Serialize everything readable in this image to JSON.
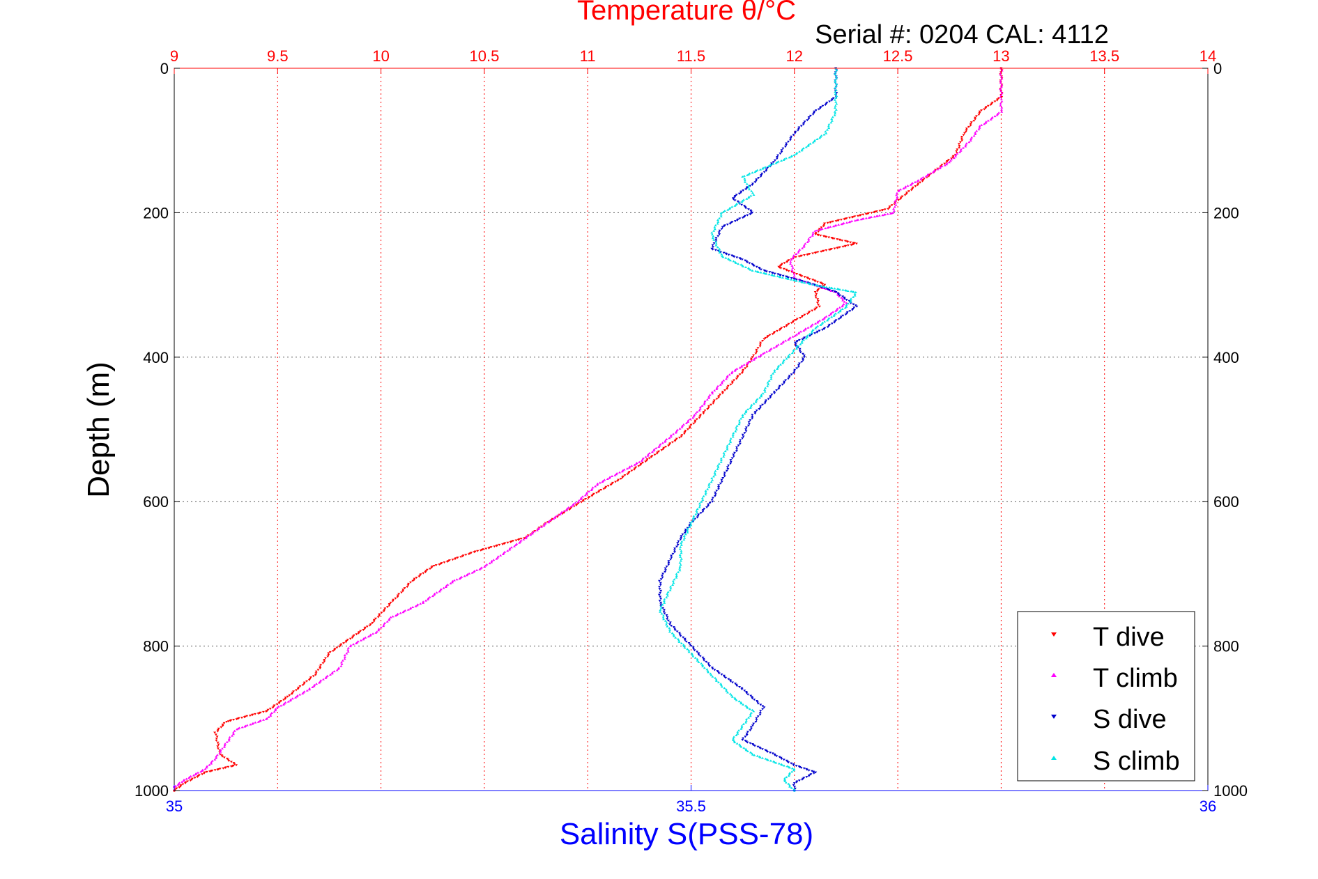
{
  "chart_data": {
    "type": "scatter",
    "title": "Temperature θ/°C",
    "subtitle": "Serial #: 0204  CAL: 4112",
    "xlabel_bottom": "Salinity S(PSS-78)",
    "ylabel": "Depth (m)",
    "x_top_axis": {
      "label": "Temperature θ/°C",
      "range": [
        9,
        14
      ],
      "ticks": [
        "9",
        "9.5",
        "10",
        "10.5",
        "11",
        "11.5",
        "12",
        "12.5",
        "13",
        "13.5",
        "14"
      ]
    },
    "x_bottom_axis": {
      "label": "Salinity S(PSS-78)",
      "range": [
        35,
        36
      ],
      "ticks": [
        "35",
        "35.5",
        "36"
      ]
    },
    "y_axis": {
      "label": "Depth (m)",
      "range": [
        0,
        1000
      ],
      "inverted": true,
      "ticks": [
        "0",
        "200",
        "400",
        "600",
        "800",
        "1000"
      ]
    },
    "grid": true,
    "legend_position": "bottom-right",
    "colors": {
      "title": "#ff0000",
      "t_dive": "#ff0000",
      "t_climb": "#ff00ff",
      "s_dive": "#0000cc",
      "s_climb": "#00e5e5",
      "salinity_axis": "#0000ff",
      "grid_temp": "#ff0000",
      "grid_depth": "#555555"
    },
    "series": [
      {
        "name": "T dive",
        "axis": "temperature",
        "points": [
          [
            13.0,
            0
          ],
          [
            13.0,
            40
          ],
          [
            12.9,
            60
          ],
          [
            12.82,
            90
          ],
          [
            12.78,
            120
          ],
          [
            12.6,
            160
          ],
          [
            12.45,
            195
          ],
          [
            12.15,
            215
          ],
          [
            12.1,
            230
          ],
          [
            12.3,
            243
          ],
          [
            12.0,
            262
          ],
          [
            11.92,
            275
          ],
          [
            12.15,
            300
          ],
          [
            12.1,
            310
          ],
          [
            12.12,
            330
          ],
          [
            12.0,
            350
          ],
          [
            11.85,
            375
          ],
          [
            11.8,
            400
          ],
          [
            11.75,
            420
          ],
          [
            11.65,
            450
          ],
          [
            11.55,
            480
          ],
          [
            11.45,
            510
          ],
          [
            11.3,
            540
          ],
          [
            11.15,
            570
          ],
          [
            11.0,
            595
          ],
          [
            10.8,
            630
          ],
          [
            10.7,
            650
          ],
          [
            10.45,
            670
          ],
          [
            10.25,
            690
          ],
          [
            10.15,
            710
          ],
          [
            10.05,
            740
          ],
          [
            9.95,
            770
          ],
          [
            9.85,
            790
          ],
          [
            9.75,
            810
          ],
          [
            9.68,
            840
          ],
          [
            9.55,
            870
          ],
          [
            9.45,
            890
          ],
          [
            9.25,
            905
          ],
          [
            9.2,
            920
          ],
          [
            9.22,
            950
          ],
          [
            9.3,
            965
          ],
          [
            9.15,
            975
          ],
          [
            9.05,
            990
          ],
          [
            9.0,
            1000
          ]
        ]
      },
      {
        "name": "T climb",
        "axis": "temperature",
        "points": [
          [
            13.0,
            0
          ],
          [
            13.0,
            60
          ],
          [
            12.9,
            80
          ],
          [
            12.85,
            100
          ],
          [
            12.75,
            130
          ],
          [
            12.6,
            155
          ],
          [
            12.5,
            170
          ],
          [
            12.48,
            200
          ],
          [
            12.3,
            210
          ],
          [
            12.1,
            225
          ],
          [
            12.05,
            245
          ],
          [
            11.98,
            265
          ],
          [
            12.0,
            290
          ],
          [
            12.2,
            310
          ],
          [
            12.25,
            325
          ],
          [
            12.15,
            345
          ],
          [
            12.0,
            370
          ],
          [
            11.85,
            395
          ],
          [
            11.7,
            420
          ],
          [
            11.6,
            450
          ],
          [
            11.52,
            480
          ],
          [
            11.4,
            510
          ],
          [
            11.25,
            545
          ],
          [
            11.05,
            575
          ],
          [
            10.95,
            600
          ],
          [
            10.8,
            630
          ],
          [
            10.65,
            660
          ],
          [
            10.5,
            690
          ],
          [
            10.35,
            710
          ],
          [
            10.2,
            740
          ],
          [
            10.05,
            760
          ],
          [
            9.98,
            780
          ],
          [
            9.85,
            800
          ],
          [
            9.8,
            830
          ],
          [
            9.65,
            860
          ],
          [
            9.5,
            885
          ],
          [
            9.45,
            900
          ],
          [
            9.3,
            915
          ],
          [
            9.25,
            935
          ],
          [
            9.2,
            955
          ],
          [
            9.15,
            970
          ],
          [
            9.05,
            985
          ],
          [
            9.0,
            995
          ]
        ]
      },
      {
        "name": "S dive",
        "axis": "salinity",
        "points": [
          [
            35.64,
            0
          ],
          [
            35.64,
            40
          ],
          [
            35.62,
            60
          ],
          [
            35.6,
            90
          ],
          [
            35.58,
            130
          ],
          [
            35.56,
            160
          ],
          [
            35.54,
            180
          ],
          [
            35.56,
            200
          ],
          [
            35.53,
            220
          ],
          [
            35.52,
            250
          ],
          [
            35.55,
            265
          ],
          [
            35.57,
            280
          ],
          [
            35.62,
            300
          ],
          [
            35.64,
            310
          ],
          [
            35.66,
            330
          ],
          [
            35.63,
            360
          ],
          [
            35.6,
            380
          ],
          [
            35.61,
            400
          ],
          [
            35.6,
            420
          ],
          [
            35.58,
            450
          ],
          [
            35.56,
            480
          ],
          [
            35.55,
            510
          ],
          [
            35.54,
            540
          ],
          [
            35.53,
            570
          ],
          [
            35.52,
            600
          ],
          [
            35.5,
            630
          ],
          [
            35.49,
            650
          ],
          [
            35.48,
            680
          ],
          [
            35.47,
            710
          ],
          [
            35.47,
            740
          ],
          [
            35.48,
            770
          ],
          [
            35.5,
            800
          ],
          [
            35.52,
            830
          ],
          [
            35.55,
            860
          ],
          [
            35.57,
            885
          ],
          [
            35.56,
            910
          ],
          [
            35.55,
            930
          ],
          [
            35.58,
            950
          ],
          [
            35.6,
            965
          ],
          [
            35.62,
            975
          ],
          [
            35.6,
            990
          ],
          [
            35.6,
            1000
          ]
        ]
      },
      {
        "name": "S climb",
        "axis": "salinity",
        "points": [
          [
            35.64,
            0
          ],
          [
            35.64,
            30
          ],
          [
            35.64,
            60
          ],
          [
            35.63,
            90
          ],
          [
            35.6,
            120
          ],
          [
            35.55,
            150
          ],
          [
            35.56,
            175
          ],
          [
            35.53,
            200
          ],
          [
            35.52,
            230
          ],
          [
            35.53,
            260
          ],
          [
            35.56,
            280
          ],
          [
            35.62,
            300
          ],
          [
            35.66,
            310
          ],
          [
            35.65,
            330
          ],
          [
            35.62,
            360
          ],
          [
            35.6,
            390
          ],
          [
            35.58,
            420
          ],
          [
            35.57,
            450
          ],
          [
            35.55,
            480
          ],
          [
            35.54,
            510
          ],
          [
            35.53,
            540
          ],
          [
            35.52,
            570
          ],
          [
            35.51,
            600
          ],
          [
            35.5,
            630
          ],
          [
            35.49,
            660
          ],
          [
            35.49,
            690
          ],
          [
            35.48,
            720
          ],
          [
            35.47,
            750
          ],
          [
            35.48,
            780
          ],
          [
            35.5,
            810
          ],
          [
            35.52,
            840
          ],
          [
            35.54,
            870
          ],
          [
            35.56,
            890
          ],
          [
            35.55,
            910
          ],
          [
            35.54,
            930
          ],
          [
            35.56,
            950
          ],
          [
            35.6,
            970
          ],
          [
            35.59,
            985
          ],
          [
            35.6,
            1000
          ]
        ]
      }
    ]
  }
}
